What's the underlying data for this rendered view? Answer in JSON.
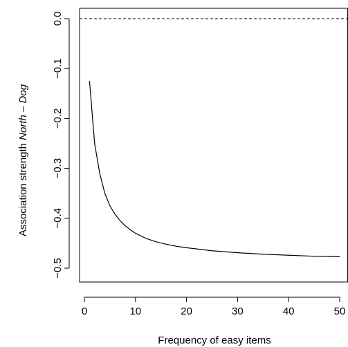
{
  "chart_data": {
    "type": "line",
    "xlabel": "Frequency of easy items",
    "ylabel_prefix": "Association strength ",
    "ylabel_emphasis": "North – Dog",
    "xlim": [
      1,
      50
    ],
    "ylim": [
      -0.5,
      0.0
    ],
    "xticks": [
      0,
      10,
      20,
      30,
      40,
      50
    ],
    "xtick_labels": [
      "0",
      "10",
      "20",
      "30",
      "40",
      "50"
    ],
    "yticks": [
      -0.5,
      -0.4,
      -0.3,
      -0.2,
      -0.1,
      0.0
    ],
    "ytick_labels": [
      "−0.5",
      "−0.4",
      "−0.3",
      "−0.2",
      "−0.1",
      "0.0"
    ],
    "reference_line": {
      "y": 0.0,
      "style": "dashed"
    },
    "grid": false,
    "series": [
      {
        "x": [
          1,
          2,
          3,
          4,
          5,
          6,
          7,
          8,
          9,
          10,
          12,
          14,
          16,
          18,
          20,
          25,
          30,
          35,
          40,
          45,
          50
        ],
        "values": [
          -0.125,
          -0.25,
          -0.31,
          -0.35,
          -0.375,
          -0.392,
          -0.405,
          -0.415,
          -0.423,
          -0.43,
          -0.44,
          -0.447,
          -0.452,
          -0.456,
          -0.459,
          -0.465,
          -0.469,
          -0.472,
          -0.474,
          -0.476,
          -0.477
        ]
      }
    ]
  }
}
